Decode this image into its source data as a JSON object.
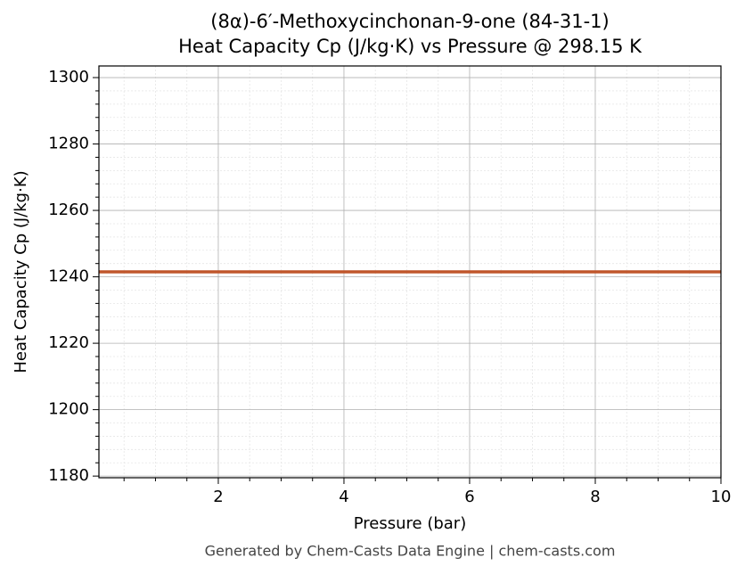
{
  "chart_data": {
    "type": "line",
    "title": "(8α)-6′-Methoxycinchonan-9-one (84-31-1)",
    "subtitle": "Heat Capacity Cp (J/kg·K) vs Pressure @ 298.15 K",
    "x_label": "Pressure (bar)",
    "y_label": "Heat Capacity Cp (J/kg·K)",
    "footer": "Generated by Chem-Casts Data Engine | chem-casts.com",
    "x": [
      0.1,
      10
    ],
    "series": [
      {
        "name": "Cp",
        "color": "#c0562b",
        "values": [
          1241.5,
          1241.5
        ]
      }
    ],
    "xlim": [
      0.1,
      10
    ],
    "xticks": [
      2,
      4,
      6,
      8,
      10
    ],
    "x_minor_ticks": [
      0.5,
      1,
      1.5,
      2.5,
      3,
      3.5,
      4.5,
      5,
      5.5,
      6.5,
      7,
      7.5,
      8.5,
      9,
      9.5
    ],
    "ylim": [
      1179.5,
      1303.5
    ],
    "yticks": [
      1180,
      1200,
      1220,
      1240,
      1260,
      1280,
      1300
    ],
    "y_minor_ticks": [
      1184,
      1188,
      1192,
      1196,
      1204,
      1208,
      1212,
      1216,
      1224,
      1228,
      1232,
      1236,
      1244,
      1248,
      1252,
      1256,
      1264,
      1268,
      1272,
      1276,
      1284,
      1288,
      1292,
      1296
    ],
    "grid": true
  }
}
